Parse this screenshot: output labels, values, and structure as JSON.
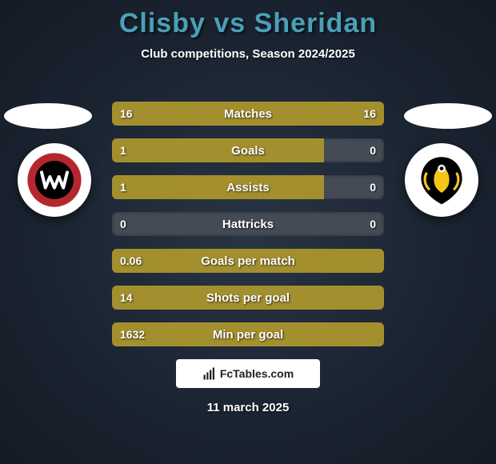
{
  "title_color": "#4aa0b8",
  "header": {
    "player1": "Clisby",
    "vs": "vs",
    "player2": "Sheridan",
    "subtitle": "Club competitions, Season 2024/2025"
  },
  "teams": {
    "left": {
      "name": "Western Sydney Wanderers",
      "colors": {
        "bg": "#ffffff",
        "ring": "#b5272f",
        "inner": "#000000",
        "accent": "#ffffff"
      }
    },
    "right": {
      "name": "Wellington Phoenix",
      "colors": {
        "bg": "#ffffff",
        "body": "#000000",
        "accent": "#f5c518"
      }
    }
  },
  "bar_style": {
    "neutral_color": "#444b55",
    "left_color": "#a38f2e",
    "right_color": "#a38f2e",
    "height": 30,
    "radius": 6,
    "label_fontsize": 15,
    "value_fontsize": 14
  },
  "stats": [
    {
      "label": "Matches",
      "left_val": "16",
      "right_val": "16",
      "left_pct": 50,
      "right_pct": 50
    },
    {
      "label": "Goals",
      "left_val": "1",
      "right_val": "0",
      "left_pct": 78,
      "right_pct": 0
    },
    {
      "label": "Assists",
      "left_val": "1",
      "right_val": "0",
      "left_pct": 78,
      "right_pct": 0
    },
    {
      "label": "Hattricks",
      "left_val": "0",
      "right_val": "0",
      "left_pct": 0,
      "right_pct": 0
    },
    {
      "label": "Goals per match",
      "left_val": "0.06",
      "right_val": "",
      "left_pct": 100,
      "right_pct": 0
    },
    {
      "label": "Shots per goal",
      "left_val": "14",
      "right_val": "",
      "left_pct": 100,
      "right_pct": 0
    },
    {
      "label": "Min per goal",
      "left_val": "1632",
      "right_val": "",
      "left_pct": 100,
      "right_pct": 0
    }
  ],
  "footer": {
    "brand": "FcTables.com",
    "date": "11 march 2025"
  }
}
